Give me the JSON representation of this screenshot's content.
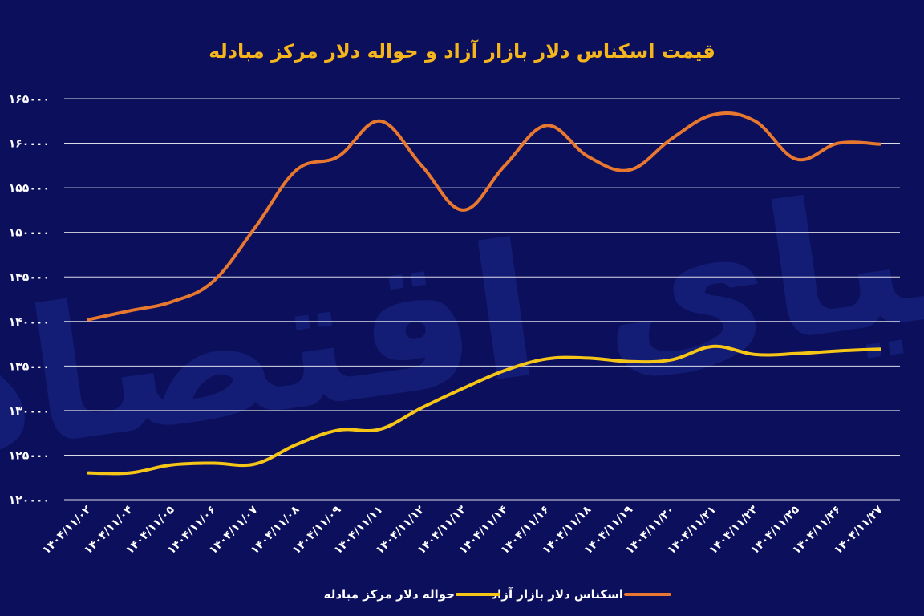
{
  "chart_data": {
    "type": "line",
    "title": "قیمت اسکناس دلار بازار آزاد و حواله دلار مرکز مبادله",
    "watermark": "دنیای اقتصاد",
    "categories": [
      "۱۴۰۴/۱۱/۰۲",
      "۱۴۰۴/۱۱/۰۴",
      "۱۴۰۴/۱۱/۰۵",
      "۱۴۰۴/۱۱/۰۶",
      "۱۴۰۴/۱۱/۰۷",
      "۱۴۰۴/۱۱/۰۸",
      "۱۴۰۴/۱۱/۰۹",
      "۱۴۰۴/۱۱/۱۱",
      "۱۴۰۴/۱۱/۱۲",
      "۱۴۰۴/۱۱/۱۳",
      "۱۴۰۴/۱۱/۱۴",
      "۱۴۰۴/۱۱/۱۶",
      "۱۴۰۴/۱۱/۱۸",
      "۱۴۰۴/۱۱/۱۹",
      "۱۴۰۴/۱۱/۲۰",
      "۱۴۰۴/۱۱/۲۱",
      "۱۴۰۴/۱۱/۲۳",
      "۱۴۰۴/۱۱/۲۵",
      "۱۴۰۴/۱۱/۲۶",
      "۱۴۰۴/۱۱/۲۷"
    ],
    "yticks": [
      "۱۲۰۰۰۰",
      "۱۲۵۰۰۰",
      "۱۳۰۰۰۰",
      "۱۳۵۰۰۰",
      "۱۴۰۰۰۰",
      "۱۴۵۰۰۰",
      "۱۵۰۰۰۰",
      "۱۵۵۰۰۰",
      "۱۶۰۰۰۰",
      "۱۶۵۰۰۰"
    ],
    "ylim": [
      120000,
      165000
    ],
    "grid": true,
    "legend_position": "bottom",
    "series": [
      {
        "name": "اسکناس دلار بازار آزاد",
        "color": "#e8782f",
        "values": [
          140200,
          141200,
          142200,
          144500,
          150500,
          157000,
          158500,
          162500,
          157500,
          152500,
          157500,
          162000,
          158500,
          157000,
          160500,
          163200,
          162500,
          158200,
          160000,
          159900
        ]
      },
      {
        "name": "حواله دلار مرکز مبادله",
        "color": "#f5c518",
        "values": [
          123000,
          123000,
          123900,
          124100,
          124000,
          126200,
          127800,
          127900,
          130300,
          132500,
          134500,
          135800,
          135900,
          135500,
          135700,
          137200,
          136300,
          136400,
          136700,
          136900
        ]
      }
    ]
  }
}
